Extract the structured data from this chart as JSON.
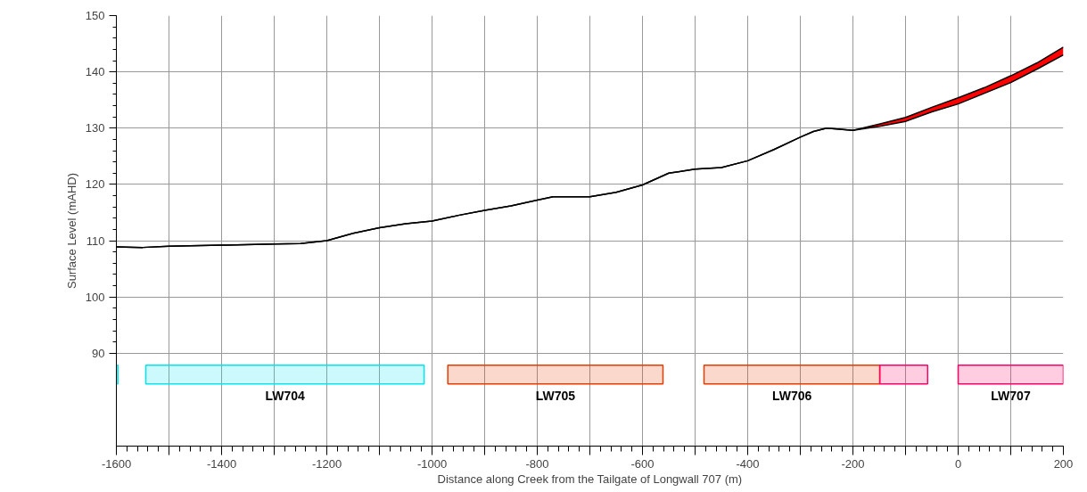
{
  "chart_data": {
    "type": "line",
    "xlabel": "Distance along Creek from the Tailgate of Longwall 707 (m)",
    "ylabel": "Surface Level (mAHD)",
    "x": [
      -1600,
      -1550,
      -1500,
      -1400,
      -1300,
      -1250,
      -1200,
      -1150,
      -1100,
      -1050,
      -1000,
      -950,
      -900,
      -850,
      -800,
      -770,
      -750,
      -700,
      -650,
      -600,
      -550,
      -500,
      -450,
      -400,
      -350,
      -300,
      -275,
      -250,
      -200,
      -150,
      -100,
      -50,
      0,
      50,
      100,
      150,
      200
    ],
    "series": [
      {
        "color": "#000000",
        "values": [
          108.9,
          108.8,
          109.0,
          109.2,
          109.4,
          109.5,
          110.0,
          111.3,
          112.3,
          113.0,
          113.5,
          114.5,
          115.4,
          116.2,
          117.2,
          117.8,
          117.8,
          117.8,
          118.6,
          119.9,
          122.0,
          122.7,
          123.0,
          124.2,
          126.2,
          128.4,
          129.4,
          130.0,
          129.6,
          130.3,
          131.2,
          132.9,
          134.3,
          136.2,
          138.1,
          140.5,
          143.0
        ]
      },
      {
        "color": "#000000",
        "values": [
          108.9,
          108.8,
          109.0,
          109.2,
          109.4,
          109.5,
          110.0,
          111.3,
          112.3,
          113.0,
          113.5,
          114.5,
          115.4,
          116.2,
          117.2,
          117.8,
          117.8,
          117.8,
          118.6,
          119.9,
          122.0,
          122.7,
          123.0,
          124.2,
          126.2,
          128.4,
          129.4,
          130.0,
          129.6,
          130.7,
          131.9,
          133.7,
          135.4,
          137.2,
          139.3,
          141.6,
          144.4
        ],
        "lower": [
          108.9,
          108.8,
          109.0,
          109.2,
          109.4,
          109.5,
          110.0,
          111.3,
          112.3,
          113.0,
          113.5,
          114.5,
          115.4,
          116.2,
          117.2,
          117.8,
          117.8,
          117.8,
          118.6,
          119.9,
          122.0,
          122.7,
          123.0,
          124.2,
          126.2,
          128.4,
          129.4,
          130.0,
          129.6,
          130.3,
          131.2,
          132.9,
          134.3,
          136.2,
          138.1,
          140.5,
          143.0
        ],
        "upper": [
          108.9,
          108.8,
          109.0,
          109.2,
          109.4,
          109.5,
          110.0,
          111.3,
          112.3,
          113.0,
          113.5,
          114.5,
          115.4,
          116.2,
          117.2,
          117.8,
          117.8,
          117.8,
          118.6,
          119.9,
          122.0,
          122.7,
          123.0,
          124.2,
          126.2,
          128.4,
          129.4,
          130.0,
          129.6,
          130.7,
          131.9,
          133.7,
          135.4,
          137.2,
          139.3,
          141.6,
          144.4
        ]
      }
    ],
    "xlim": [
      -1600,
      200
    ],
    "xticks": [
      {
        "value": -1600,
        "label": "-1600"
      },
      {
        "value": -1500,
        "label": null
      },
      {
        "value": -1400,
        "label": "-1400"
      },
      {
        "value": -1300,
        "label": null
      },
      {
        "value": -1200,
        "label": "-1200"
      },
      {
        "value": -1100,
        "label": null
      },
      {
        "value": -1000,
        "label": "-1000"
      },
      {
        "value": -900,
        "label": null
      },
      {
        "value": -800,
        "label": "-800"
      },
      {
        "value": -700,
        "label": null
      },
      {
        "value": -600,
        "label": "-600"
      },
      {
        "value": -500,
        "label": null
      },
      {
        "value": -400,
        "label": "-400"
      },
      {
        "value": -300,
        "label": null
      },
      {
        "value": -200,
        "label": "-200"
      },
      {
        "value": -100,
        "label": null
      },
      {
        "value": 0,
        "label": "0"
      },
      {
        "value": 100,
        "label": null
      },
      {
        "value": 200,
        "label": "200"
      }
    ],
    "ylim": [
      73.5,
      150
    ],
    "yticks": [
      90,
      100,
      110,
      120,
      130,
      140,
      150
    ],
    "grid": true,
    "line_style": "solid",
    "bands": [
      {
        "axis": "x",
        "from": -1600,
        "to": -1597,
        "color": "#00e5ee"
      },
      {
        "axis": "x",
        "from": -1544,
        "to": -1015,
        "label": "LW704",
        "color": "#00e5ee"
      },
      {
        "axis": "x",
        "from": -970,
        "to": -561,
        "label": "LW705",
        "color": "#e63c00"
      },
      {
        "axis": "x",
        "from": -483,
        "to": -149,
        "label": "LW706",
        "color": "#e63c00"
      },
      {
        "axis": "x",
        "from": -149,
        "to": -58,
        "color": "#ff0066"
      },
      {
        "axis": "x",
        "from": 0,
        "to": 200,
        "label": "LW707",
        "color": "#ff0066"
      }
    ]
  }
}
